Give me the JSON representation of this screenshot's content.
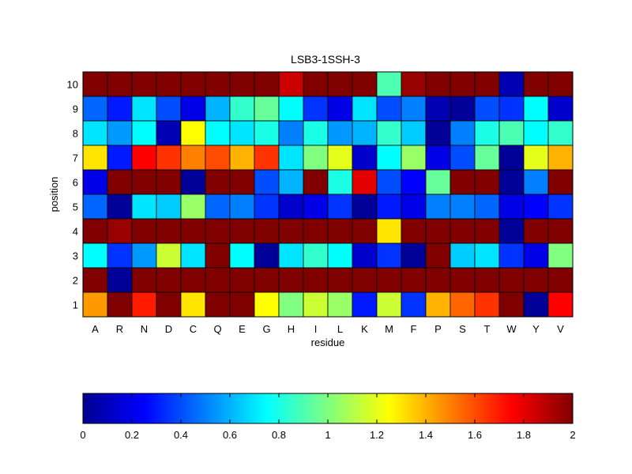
{
  "chart_data": {
    "type": "heatmap",
    "title": "LSB3-1SSH-3",
    "xlabel": "residue",
    "ylabel": "position",
    "x": [
      "A",
      "R",
      "N",
      "D",
      "C",
      "Q",
      "E",
      "G",
      "H",
      "I",
      "L",
      "K",
      "M",
      "F",
      "P",
      "S",
      "T",
      "W",
      "Y",
      "V"
    ],
    "y": [
      10,
      9,
      8,
      7,
      6,
      5,
      4,
      3,
      2,
      1
    ],
    "values": [
      [
        2.0,
        2.0,
        2.0,
        2.0,
        2.0,
        2.0,
        2.0,
        2.0,
        1.85,
        2.0,
        2.0,
        2.0,
        0.9,
        1.95,
        2.0,
        2.0,
        2.0,
        0.1,
        2.0,
        2.0
      ],
      [
        0.45,
        0.3,
        0.7,
        0.4,
        0.2,
        0.6,
        0.85,
        0.95,
        0.75,
        0.35,
        0.2,
        0.7,
        0.4,
        0.5,
        0.1,
        0.05,
        0.4,
        0.35,
        0.75,
        0.15
      ],
      [
        0.7,
        0.55,
        0.75,
        0.1,
        1.25,
        0.75,
        0.7,
        0.8,
        0.5,
        0.8,
        0.55,
        0.6,
        0.85,
        0.65,
        0.05,
        0.5,
        0.8,
        0.9,
        0.75,
        0.85
      ],
      [
        1.3,
        0.3,
        1.75,
        1.65,
        1.5,
        1.6,
        1.4,
        1.65,
        0.7,
        1.0,
        1.2,
        0.15,
        0.75,
        1.05,
        0.2,
        0.4,
        0.95,
        0.05,
        1.2,
        1.4
      ],
      [
        0.2,
        2.0,
        2.0,
        2.0,
        0.05,
        2.0,
        2.0,
        0.4,
        0.6,
        2.0,
        0.8,
        1.8,
        0.4,
        0.25,
        0.95,
        2.0,
        2.0,
        0.05,
        0.5,
        2.0
      ],
      [
        0.45,
        0.05,
        0.7,
        0.65,
        1.05,
        0.45,
        0.5,
        0.35,
        0.15,
        0.2,
        0.35,
        0.05,
        0.3,
        0.2,
        0.5,
        0.5,
        0.45,
        0.2,
        0.25,
        0.35
      ],
      [
        2.0,
        1.95,
        2.0,
        2.0,
        2.0,
        2.0,
        2.0,
        2.0,
        2.0,
        2.0,
        2.0,
        2.0,
        1.3,
        2.0,
        2.0,
        2.0,
        2.0,
        0.05,
        2.0,
        2.0
      ],
      [
        0.75,
        0.35,
        0.55,
        1.15,
        0.7,
        2.0,
        0.75,
        0.05,
        0.7,
        0.85,
        0.75,
        0.15,
        0.35,
        0.05,
        2.0,
        0.65,
        0.7,
        0.35,
        0.2,
        1.0
      ],
      [
        2.0,
        0.05,
        2.0,
        2.0,
        2.0,
        2.0,
        2.0,
        2.0,
        2.0,
        2.0,
        2.0,
        2.0,
        2.0,
        2.0,
        2.0,
        2.0,
        2.0,
        2.0,
        2.0,
        2.0
      ],
      [
        1.45,
        2.0,
        1.7,
        2.0,
        1.3,
        2.0,
        2.0,
        1.25,
        1.0,
        1.15,
        1.05,
        0.3,
        1.15,
        0.35,
        1.4,
        1.55,
        1.65,
        2.0,
        0.05,
        1.75
      ]
    ],
    "clim": [
      0,
      2
    ],
    "colormap": "jet",
    "colorbar": {
      "orientation": "horizontal",
      "placement": "bottom",
      "ticks": [
        0,
        0.2,
        0.4,
        0.6,
        0.8,
        1,
        1.2,
        1.4,
        1.6,
        1.8,
        2
      ],
      "tick_labels": [
        "0",
        "0.2",
        "0.4",
        "0.6",
        "0.8",
        "1",
        "1.2",
        "1.4",
        "1.6",
        "1.8",
        "2"
      ]
    }
  }
}
